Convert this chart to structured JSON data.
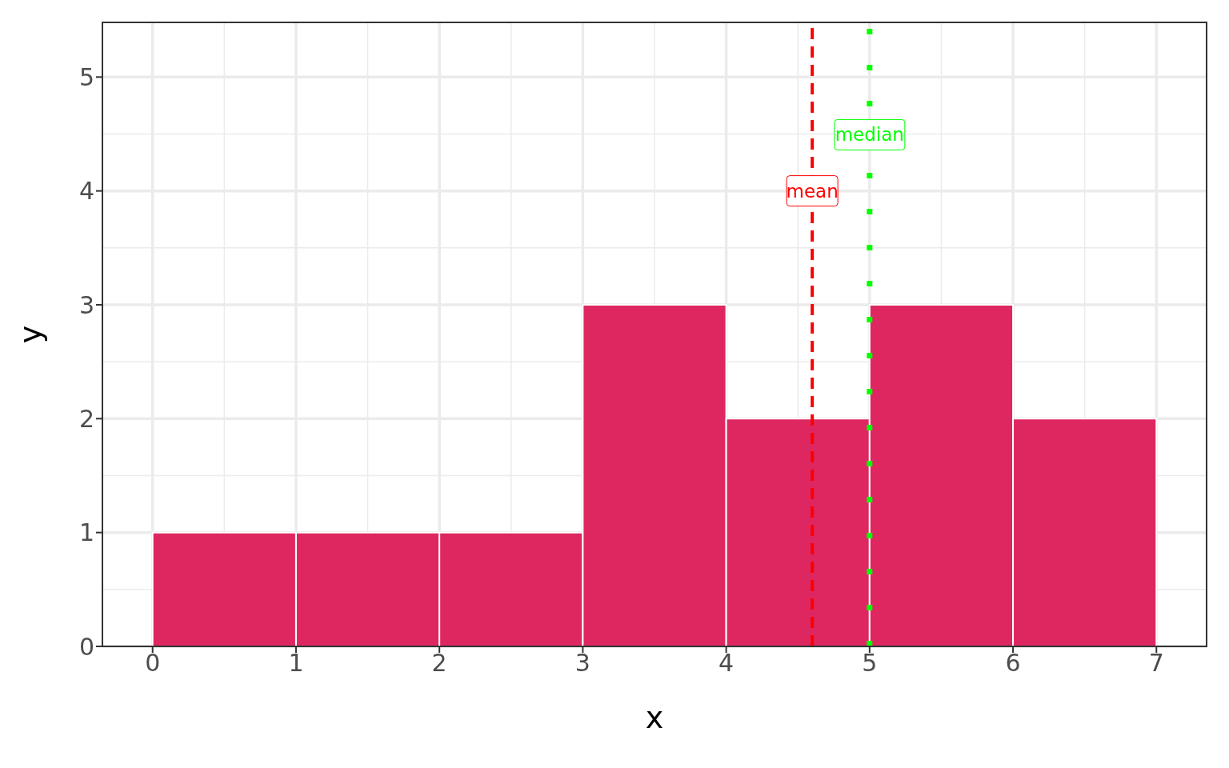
{
  "chart_data": {
    "type": "histogram",
    "xlabel": "x",
    "ylabel": "y",
    "bins": [
      0,
      1,
      2,
      3,
      4,
      5,
      6,
      7
    ],
    "values": [
      1,
      1,
      1,
      3,
      2,
      3,
      2
    ],
    "color": "#de2760",
    "xlim": [
      -0.35,
      7.35
    ],
    "xticks": [
      0,
      1,
      2,
      3,
      4,
      5,
      6,
      7
    ],
    "ylim": [
      0,
      5.48
    ],
    "yticks": [
      0,
      1,
      2,
      3,
      4,
      5
    ],
    "grid": true,
    "ref_lines": [
      {
        "axis": "x",
        "value": 4.6,
        "label": "mean",
        "color": "#ff0000",
        "line_style": "dashed"
      },
      {
        "axis": "x",
        "value": 5,
        "label": "median",
        "color": "#00ff00",
        "line_style": "dotted"
      }
    ]
  }
}
